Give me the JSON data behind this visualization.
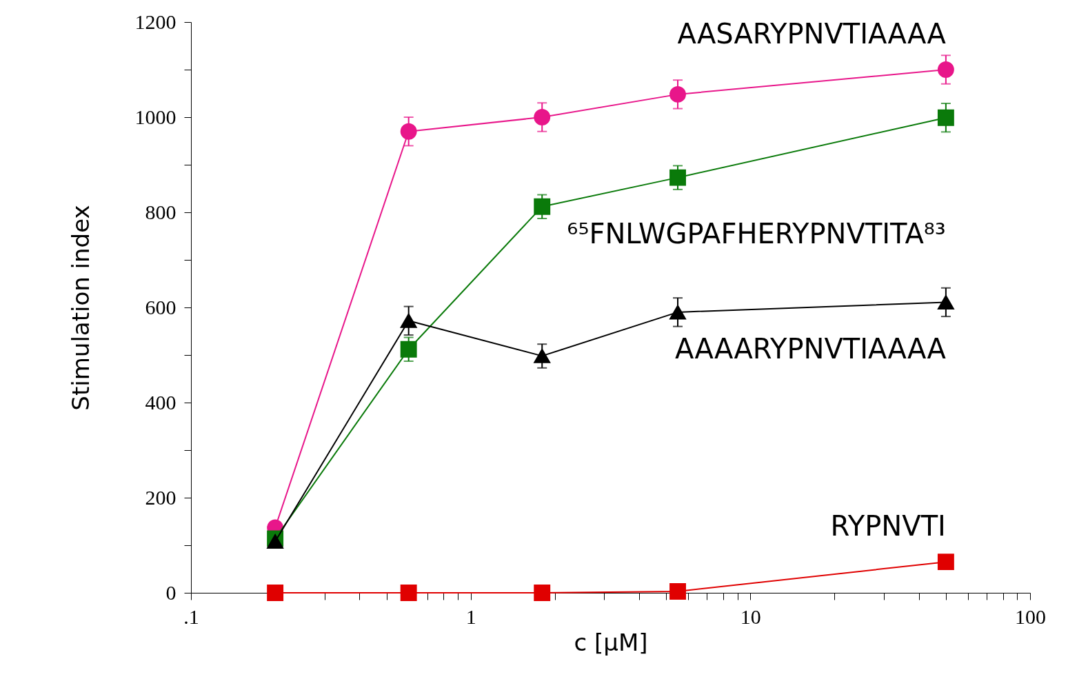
{
  "chart_data": {
    "type": "line",
    "xlabel": "c [μM]",
    "ylabel": "Stimulation index",
    "log": "x",
    "x": [
      0.2,
      0.6,
      1.8,
      5.5,
      50
    ],
    "series": [
      {
        "name": "AASARYPNVTIAAAA",
        "color": "#e8168a",
        "marker": "circle",
        "values": [
          137,
          970,
          1000,
          1048,
          1100
        ],
        "errors": [
          null,
          30,
          30,
          30,
          30
        ]
      },
      {
        "name": "⁶⁵FNLWGPAFHERYPNVTITA⁸³",
        "color": "#0a7a0a",
        "marker": "square",
        "values": [
          114,
          512,
          812,
          873,
          999
        ],
        "errors": [
          null,
          25,
          25,
          25,
          30
        ]
      },
      {
        "name": "AAAARYPNVTIAAAA",
        "color": "#000000",
        "marker": "triangle",
        "values": [
          108,
          572,
          498,
          590,
          611
        ],
        "errors": [
          null,
          30,
          25,
          30,
          30
        ]
      },
      {
        "name": "RYPNVTI",
        "color": "#e00000",
        "marker": "square",
        "values": [
          0,
          0,
          0,
          3,
          65
        ]
      }
    ],
    "xlim": [
      0.1,
      100
    ],
    "xticks": [
      {
        "value": 0.1,
        "label": ".1"
      },
      {
        "value": 0.2,
        "label": null
      },
      {
        "value": 0.3,
        "label": null
      },
      {
        "value": 0.4,
        "label": null
      },
      {
        "value": 0.5,
        "label": null
      },
      {
        "value": 0.6,
        "label": null
      },
      {
        "value": 0.7,
        "label": null
      },
      {
        "value": 0.8,
        "label": null
      },
      {
        "value": 0.9,
        "label": null
      },
      1,
      {
        "value": 2,
        "label": null
      },
      {
        "value": 3,
        "label": null
      },
      {
        "value": 4,
        "label": null
      },
      {
        "value": 5,
        "label": null
      },
      {
        "value": 6,
        "label": null
      },
      {
        "value": 7,
        "label": null
      },
      {
        "value": 8,
        "label": null
      },
      {
        "value": 9,
        "label": null
      },
      10,
      {
        "value": 20,
        "label": null
      },
      {
        "value": 30,
        "label": null
      },
      {
        "value": 40,
        "label": null
      },
      {
        "value": 50,
        "label": null
      },
      {
        "value": 60,
        "label": null
      },
      {
        "value": 70,
        "label": null
      },
      {
        "value": 80,
        "label": null
      },
      {
        "value": 90,
        "label": null
      },
      100
    ],
    "ylim": [
      0,
      1200
    ],
    "yticks": [
      0,
      {
        "value": 100,
        "label": null
      },
      200,
      {
        "value": 300,
        "label": null
      },
      400,
      {
        "value": 500,
        "label": null
      },
      600,
      {
        "value": 700,
        "label": null
      },
      800,
      {
        "value": 900,
        "label": null
      },
      1000,
      {
        "value": 1100,
        "label": null
      },
      1200
    ],
    "grid": false
  }
}
